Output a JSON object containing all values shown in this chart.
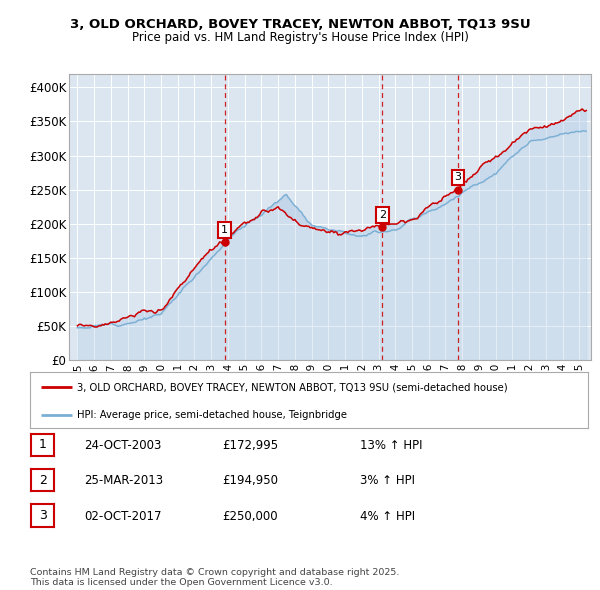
{
  "title1": "3, OLD ORCHARD, BOVEY TRACEY, NEWTON ABBOT, TQ13 9SU",
  "title2": "Price paid vs. HM Land Registry's House Price Index (HPI)",
  "red_label": "3, OLD ORCHARD, BOVEY TRACEY, NEWTON ABBOT, TQ13 9SU (semi-detached house)",
  "blue_label": "HPI: Average price, semi-detached house, Teignbridge",
  "footer": "Contains HM Land Registry data © Crown copyright and database right 2025.\nThis data is licensed under the Open Government Licence v3.0.",
  "transactions": [
    {
      "num": 1,
      "date": "24-OCT-2003",
      "price": "£172,995",
      "hpi": "13% ↑ HPI",
      "year": 2003.81,
      "price_val": 172995
    },
    {
      "num": 2,
      "date": "25-MAR-2013",
      "price": "£194,950",
      "hpi": "3% ↑ HPI",
      "year": 2013.23,
      "price_val": 194950
    },
    {
      "num": 3,
      "date": "02-OCT-2017",
      "price": "£250,000",
      "hpi": "4% ↑ HPI",
      "year": 2017.75,
      "price_val": 250000
    }
  ],
  "background_color": "#dce6f1",
  "plot_bg": "#dce6f1",
  "red_color": "#cc0000",
  "blue_color": "#7aafd4",
  "fill_color": "#b8d0e8",
  "ylim_max": 420000,
  "xlim_start": 1994.5,
  "xlim_end": 2025.7
}
